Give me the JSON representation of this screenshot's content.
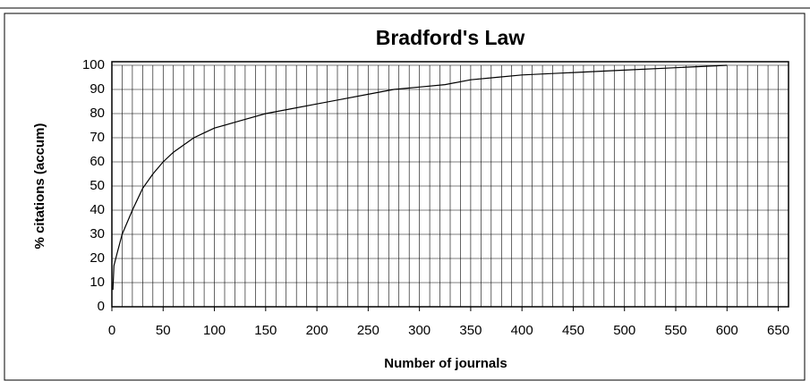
{
  "chart_data": {
    "type": "line",
    "title": "Bradford's Law",
    "xlabel": "Number of journals",
    "ylabel": "% citations (accum)",
    "x": [
      1,
      2,
      5,
      10,
      20,
      30,
      40,
      50,
      60,
      70,
      80,
      90,
      100,
      125,
      150,
      175,
      200,
      225,
      250,
      275,
      300,
      325,
      350,
      375,
      400,
      450,
      500,
      550,
      600
    ],
    "series": [
      {
        "name": "% citations",
        "color": "#000000",
        "values": [
          7,
          17,
          22,
          30,
          40,
          49,
          55,
          60,
          64,
          67,
          70,
          72,
          74,
          77,
          80,
          82,
          84,
          86,
          88,
          90,
          91,
          92,
          94,
          95,
          96,
          97,
          98,
          99,
          100
        ]
      }
    ],
    "xlim": [
      0,
      660
    ],
    "xticks": [
      0,
      50,
      100,
      150,
      200,
      250,
      300,
      350,
      400,
      450,
      500,
      550,
      600,
      650
    ],
    "ylim": [
      0,
      100
    ],
    "yticks": [
      0,
      10,
      20,
      30,
      40,
      50,
      60,
      70,
      80,
      90,
      100
    ],
    "grid": true
  }
}
